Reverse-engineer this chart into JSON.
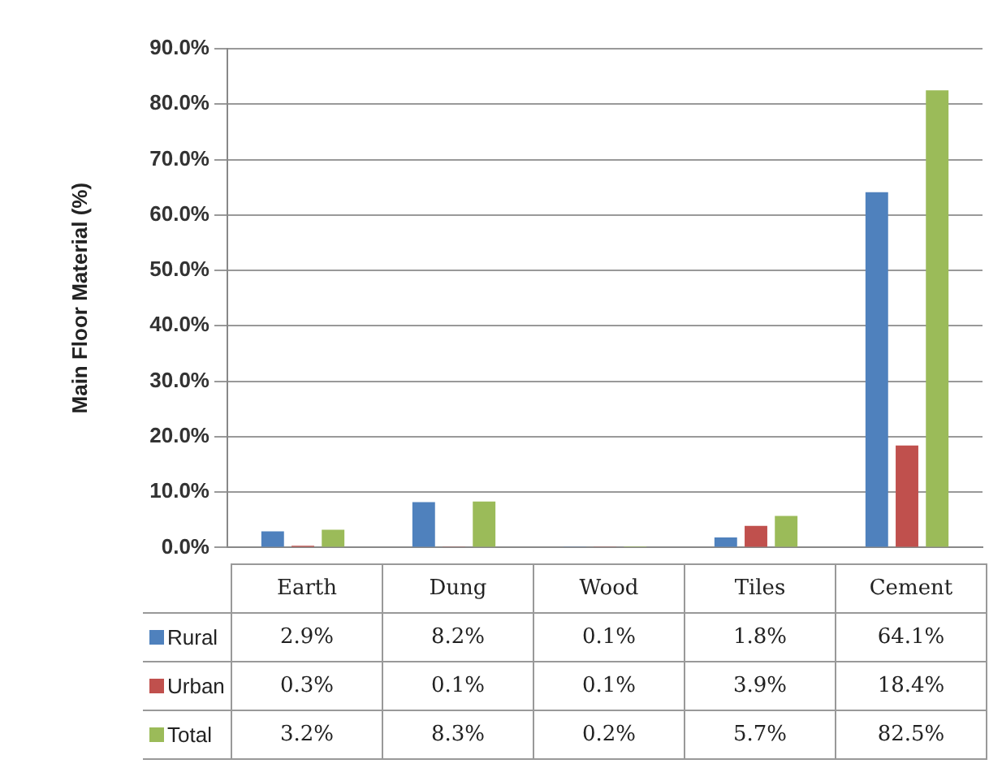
{
  "chart_data": {
    "type": "bar",
    "ylabel": "Main Floor Material (%)",
    "categories": [
      "Earth",
      "Dung",
      "Wood",
      "Tiles",
      "Cement"
    ],
    "series": [
      {
        "name": "Rural",
        "color": "#4f81bd",
        "values": [
          2.9,
          8.2,
          0.1,
          1.8,
          64.1
        ],
        "value_labels": [
          "2.9%",
          "8.2%",
          "0.1%",
          "1.8%",
          "64.1%"
        ]
      },
      {
        "name": "Urban",
        "color": "#c0504d",
        "values": [
          0.3,
          0.1,
          0.1,
          3.9,
          18.4
        ],
        "value_labels": [
          "0.3%",
          "0.1%",
          "0.1%",
          "3.9%",
          "18.4%"
        ]
      },
      {
        "name": "Total",
        "color": "#9bbb59",
        "values": [
          3.2,
          8.3,
          0.2,
          5.7,
          82.5
        ],
        "value_labels": [
          "3.2%",
          "8.3%",
          "0.2%",
          "5.7%",
          "82.5%"
        ]
      }
    ],
    "ylim": [
      0,
      90
    ],
    "yticks": [
      {
        "value": 0,
        "label": "0.0%"
      },
      {
        "value": 10,
        "label": "10.0%"
      },
      {
        "value": 20,
        "label": "20.0%"
      },
      {
        "value": 30,
        "label": "30.0%"
      },
      {
        "value": 40,
        "label": "40.0%"
      },
      {
        "value": 50,
        "label": "50.0%"
      },
      {
        "value": 60,
        "label": "60.0%"
      },
      {
        "value": 70,
        "label": "70.0%"
      },
      {
        "value": 80,
        "label": "80.0%"
      },
      {
        "value": 90,
        "label": "90.0%"
      }
    ],
    "grid": "y",
    "legend": "bottom"
  }
}
